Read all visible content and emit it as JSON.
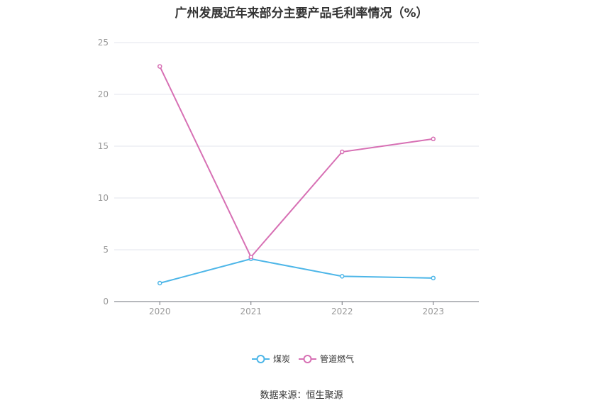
{
  "title": "广州发展近年来部分主要产品毛利率情况（%）",
  "source": "数据来源：恒生聚源",
  "chart_data": {
    "type": "line",
    "title": "广州发展近年来部分主要产品毛利率情况（%）",
    "x": [
      "2020",
      "2021",
      "2022",
      "2023"
    ],
    "ylim": [
      0,
      25
    ],
    "yticks": [
      0,
      5,
      10,
      15,
      20,
      25
    ],
    "grid": true,
    "legend_position": "bottom-center",
    "series": [
      {
        "name": "煤炭",
        "color": "#4db6e8",
        "values": [
          1.78,
          4.12,
          2.44,
          2.27
        ]
      },
      {
        "name": "管道燃气",
        "color": "#d770b4",
        "values": [
          22.7,
          4.3,
          14.45,
          15.7
        ]
      }
    ]
  }
}
